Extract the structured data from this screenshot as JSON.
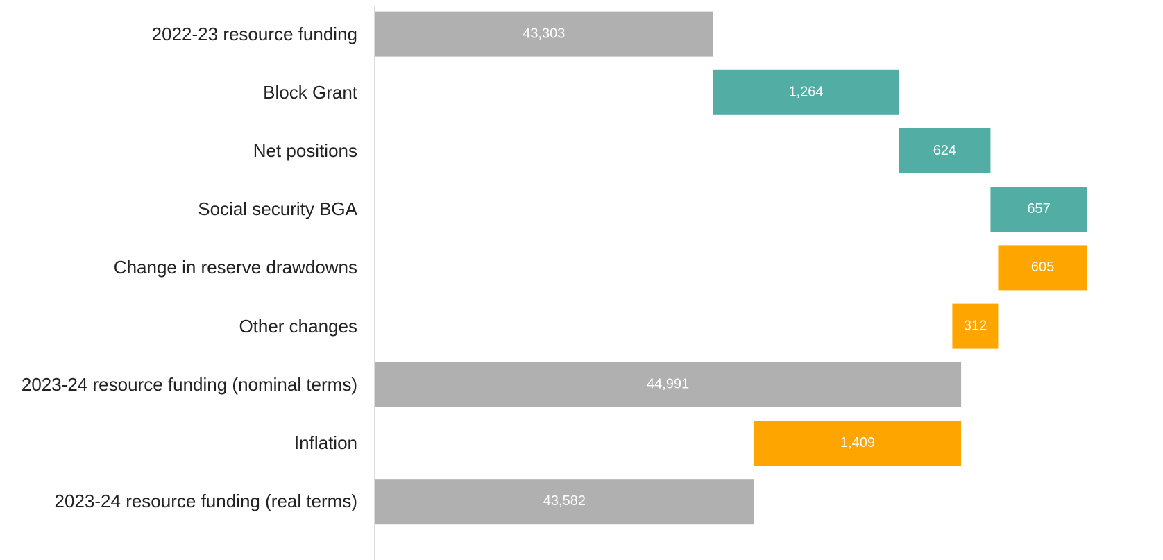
{
  "chart_data": {
    "type": "waterfall",
    "categories": [
      "2022-23 resource funding",
      "Block Grant",
      "Net positions",
      "Social security BGA",
      "Change in reserve drawdowns",
      "Other changes",
      "2023-24 resource funding (nominal terms)",
      "Inflation",
      "2023-24 resource funding (real terms)"
    ],
    "values": [
      43303,
      1264,
      624,
      657,
      605,
      312,
      44991,
      1409,
      43582
    ],
    "value_labels": [
      "43,303",
      "1,264",
      "624",
      "657",
      "605",
      "312",
      "44,991",
      "1,409",
      "43,582"
    ],
    "kinds": [
      "total",
      "increase",
      "increase",
      "increase",
      "decrease",
      "decrease",
      "total",
      "decrease",
      "total"
    ],
    "colors": {
      "total": "#b0b0b0",
      "increase": "#52ada4",
      "decrease": "#ffa500"
    },
    "xlim": [
      41000,
      45850
    ]
  }
}
